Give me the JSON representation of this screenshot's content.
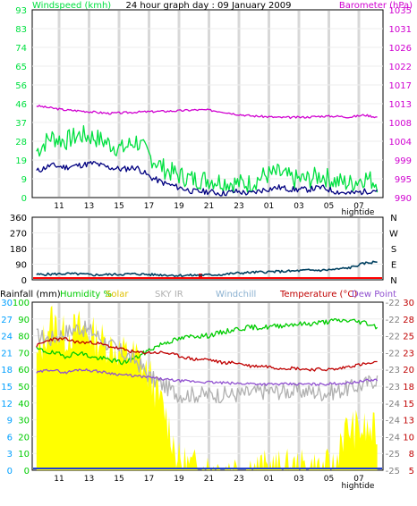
{
  "page": {
    "title": "24 hour graph day : 09 January 2009",
    "hightide_label": "hightide"
  },
  "colors": {
    "windspeed": "#00e040",
    "wind_avg": "#000080",
    "barometer": "#d000d0",
    "direction": "#004060",
    "rain_marker": "#ff0000",
    "humidity": "#00cc00",
    "solar": "#ffff00",
    "sky_ir": "#b0b0b0",
    "windchill": "#8ab0d0",
    "temperature": "#c00000",
    "dew_point": "#9050d0",
    "rainfall_axis": "#00a0ff",
    "frame": "#000000",
    "grid": "#d8d8d8"
  },
  "chart_data": [
    {
      "type": "line",
      "title": "24 hour graph day : 09 January 2009",
      "x_tick_labels": [
        "11",
        "13",
        "15",
        "17",
        "19",
        "21",
        "23",
        "01",
        "03",
        "05",
        "07"
      ],
      "left_axis": {
        "label": "Windspeed (kmh)",
        "ticks": [
          "93",
          "83",
          "74",
          "65",
          "56",
          "46",
          "37",
          "28",
          "19",
          "9",
          "0"
        ],
        "ylim": [
          0,
          93
        ]
      },
      "right_axis": {
        "label": "Barometer (hPa)",
        "ticks": [
          "1035",
          "1031",
          "1026",
          "1022",
          "1017",
          "1013",
          "1008",
          "1004",
          "999",
          "995",
          "990"
        ],
        "ylim": [
          990,
          1035
        ]
      },
      "series": [
        {
          "name": "Windspeed (kmh)",
          "axis": "left",
          "style": "gust",
          "x": [
            0,
            1,
            2,
            3,
            4,
            5,
            6,
            7,
            8,
            9,
            10,
            11,
            12,
            13,
            14,
            15,
            16,
            17,
            18,
            19,
            20,
            21,
            22,
            23,
            24
          ],
          "values": [
            23,
            30,
            28,
            31,
            30,
            27,
            24,
            28,
            20,
            14,
            11,
            9,
            9,
            8,
            7,
            7,
            11,
            12,
            9,
            9,
            11,
            8,
            7,
            10,
            7
          ]
        },
        {
          "name": "Wind average",
          "axis": "left",
          "style": "avg",
          "x": [
            0,
            1,
            2,
            3,
            4,
            5,
            6,
            7,
            8,
            9,
            10,
            11,
            12,
            13,
            14,
            15,
            16,
            17,
            18,
            19,
            20,
            21,
            22,
            23,
            24
          ],
          "values": [
            13,
            16,
            15,
            16,
            17,
            15,
            14,
            15,
            10,
            7,
            5,
            3,
            3,
            2,
            3,
            2,
            4,
            5,
            4,
            4,
            5,
            3,
            2,
            3,
            4
          ]
        },
        {
          "name": "Barometer (hPa)",
          "axis": "right",
          "x": [
            0,
            1,
            2,
            3,
            4,
            5,
            6,
            7,
            8,
            9,
            10,
            11,
            12,
            13,
            14,
            15,
            16,
            17,
            18,
            19,
            20,
            21,
            22,
            23,
            24
          ],
          "values": [
            1012,
            1011.5,
            1011,
            1010.8,
            1010.5,
            1010.2,
            1010.3,
            1010.5,
            1010.6,
            1010.7,
            1010.8,
            1011,
            1011,
            1010.6,
            1010,
            1009.6,
            1009.4,
            1009.2,
            1009.2,
            1009.3,
            1009.5,
            1009.5,
            1009.3,
            1009.8,
            1009.2
          ]
        }
      ]
    },
    {
      "type": "line",
      "title": "Wind direction",
      "x_tick_labels": [
        "11",
        "13",
        "15",
        "17",
        "19",
        "21",
        "23",
        "01",
        "03",
        "05",
        "07"
      ],
      "left_axis": {
        "ticks": [
          "360",
          "270",
          "180",
          "90",
          "0"
        ],
        "ylim": [
          0,
          360
        ]
      },
      "right_axis": {
        "ticks": [
          "N",
          "W",
          "S",
          "E",
          "N"
        ]
      },
      "series": [
        {
          "name": "Wind direction",
          "x": [
            0,
            1,
            2,
            3,
            4,
            5,
            6,
            7,
            8,
            9,
            10,
            11,
            12,
            13,
            14,
            15,
            16,
            17,
            18,
            19,
            20,
            21,
            22,
            23,
            24
          ],
          "values": [
            30,
            32,
            35,
            33,
            28,
            30,
            32,
            34,
            30,
            28,
            25,
            26,
            28,
            30,
            38,
            42,
            45,
            48,
            50,
            55,
            55,
            60,
            70,
            95,
            105
          ]
        }
      ],
      "markers": [
        {
          "name": "rain",
          "x": 11.5
        }
      ]
    },
    {
      "type": "line",
      "x_tick_labels": [
        "11",
        "13",
        "15",
        "17",
        "19",
        "21",
        "23",
        "01",
        "03",
        "05",
        "07"
      ],
      "legend": [
        "Rainfall (mm)",
        "Humidity %",
        "Solar",
        "SKY IR",
        "Windchill",
        "Temperature (°C)",
        "Dew Point"
      ],
      "axes": {
        "rainfall": {
          "ticks": [
            "30",
            "27",
            "24",
            "21",
            "18",
            "15",
            "12",
            "9",
            "6",
            "3",
            "0"
          ],
          "ylim": [
            0,
            30
          ]
        },
        "humidity": {
          "ticks": [
            "100",
            "90",
            "80",
            "70",
            "60",
            "50",
            "40",
            "30",
            "20",
            "10",
            "0"
          ],
          "ylim": [
            0,
            100
          ]
        },
        "sky_ir": {
          "ticks": [
            "-22",
            "-22",
            "-22",
            "-22",
            "-23",
            "-23",
            "-24",
            "-24",
            "-24",
            "-25",
            "-25"
          ]
        },
        "temperature": {
          "ticks": [
            "30",
            "28",
            "25",
            "23",
            "20",
            "18",
            "15",
            "13",
            "10",
            "8",
            "5"
          ],
          "ylim": [
            5,
            30
          ]
        }
      },
      "series": [
        {
          "name": "Humidity %",
          "axis": "humidity",
          "x": [
            0,
            1,
            2,
            3,
            4,
            5,
            6,
            7,
            8,
            9,
            10,
            11,
            12,
            13,
            14,
            15,
            16,
            17,
            18,
            19,
            20,
            21,
            22,
            23,
            24
          ],
          "values": [
            72,
            70,
            68,
            70,
            67,
            66,
            64,
            67,
            72,
            76,
            78,
            80,
            80,
            82,
            84,
            85,
            85,
            86,
            87,
            87,
            88,
            89,
            89,
            88,
            85
          ]
        },
        {
          "name": "Solar",
          "axis": "humidity",
          "style": "fill",
          "x": [
            0,
            1,
            2,
            3,
            4,
            5,
            6,
            7,
            8,
            9,
            10,
            11,
            11.3,
            12,
            13,
            14,
            15,
            16,
            17,
            18,
            19,
            20,
            21,
            21.3,
            22,
            23,
            24
          ],
          "values": [
            65,
            90,
            80,
            85,
            80,
            75,
            70,
            68,
            55,
            35,
            5,
            2,
            1,
            1,
            1,
            1,
            1,
            1,
            1,
            1,
            1,
            1,
            1,
            20,
            25,
            24,
            22
          ]
        },
        {
          "name": "SKY IR",
          "axis": "humidity",
          "x": [
            0,
            1,
            2,
            3,
            4,
            5,
            6,
            7,
            8,
            9,
            10,
            11,
            12,
            13,
            14,
            15,
            16,
            17,
            18,
            19,
            20,
            21,
            22,
            23,
            24
          ],
          "values": [
            80,
            78,
            82,
            85,
            82,
            75,
            70,
            65,
            55,
            50,
            45,
            45,
            45,
            45,
            45,
            46,
            47,
            47,
            47,
            47,
            46,
            47,
            49,
            51,
            55
          ]
        },
        {
          "name": "Temperature (°C)",
          "axis": "temperature",
          "x": [
            0,
            1,
            2,
            3,
            4,
            5,
            6,
            7,
            8,
            9,
            10,
            11,
            12,
            13,
            14,
            15,
            16,
            17,
            18,
            19,
            20,
            21,
            22,
            23,
            24
          ],
          "values": [
            23.5,
            24.5,
            24.5,
            24,
            24,
            23.5,
            23,
            22.5,
            22.5,
            22.5,
            22,
            21.5,
            21.5,
            21,
            21,
            20.5,
            20.5,
            20.2,
            20.2,
            20,
            20,
            20,
            20.5,
            20.8,
            21
          ]
        },
        {
          "name": "Dew Point",
          "axis": "temperature",
          "x": [
            0,
            1,
            2,
            3,
            4,
            5,
            6,
            7,
            8,
            9,
            10,
            11,
            12,
            13,
            14,
            15,
            16,
            17,
            18,
            19,
            20,
            21,
            22,
            23,
            24
          ],
          "values": [
            19.5,
            20,
            19.5,
            20,
            19.8,
            19.5,
            19.2,
            19,
            18.8,
            18.5,
            18.3,
            18.2,
            18.1,
            18,
            17.9,
            17.9,
            17.8,
            17.8,
            17.8,
            17.8,
            17.8,
            17.9,
            18,
            18.3,
            18.5
          ]
        }
      ]
    }
  ]
}
